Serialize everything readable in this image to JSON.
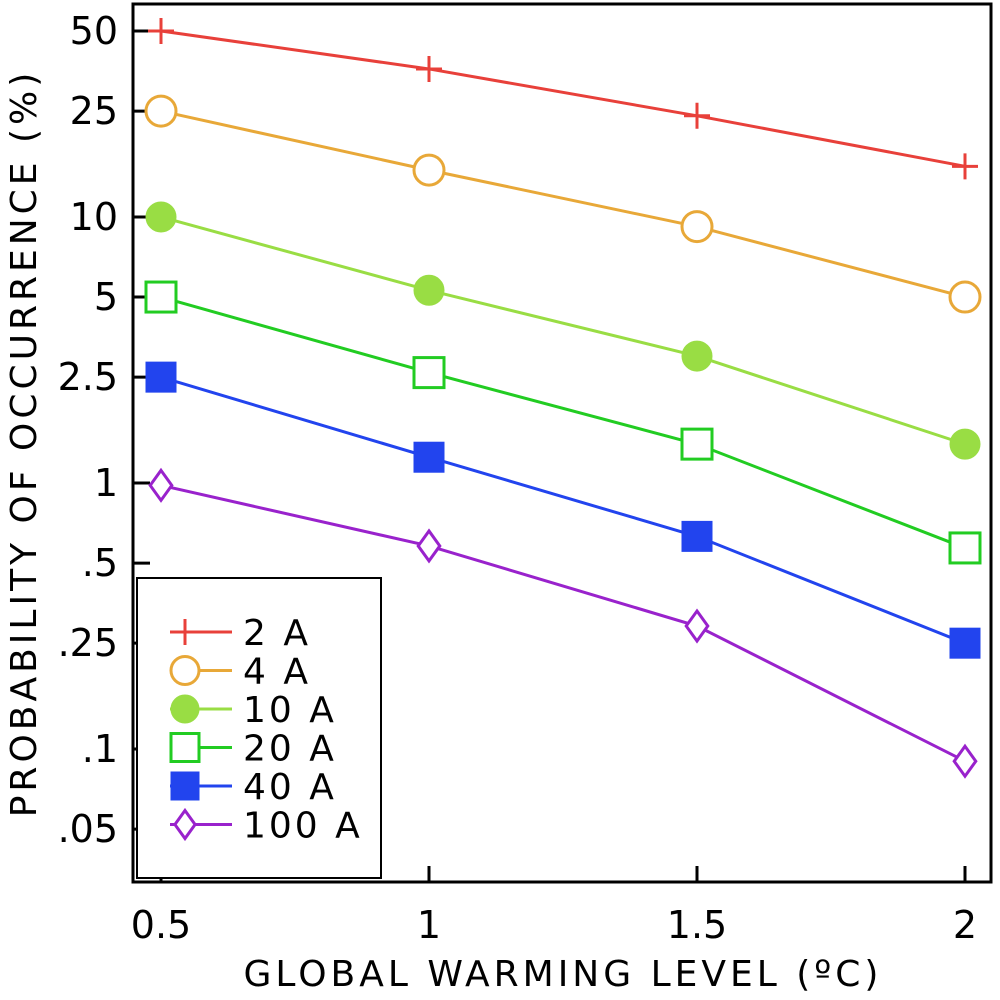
{
  "chart_data": {
    "type": "line",
    "xlabel": "GLOBAL WARMING LEVEL (ºC)",
    "ylabel": "PROBABILITY OF OCCURRENCE (%)",
    "x": [
      0.5,
      1,
      1.5,
      2
    ],
    "x_ticks": [
      "0.5",
      "1",
      "1.5",
      "2"
    ],
    "y_scale": "log",
    "y_ticks": [
      {
        "value": 50,
        "label": "50"
      },
      {
        "value": 25,
        "label": "25"
      },
      {
        "value": 10,
        "label": "10"
      },
      {
        "value": 5,
        "label": "5"
      },
      {
        "value": 2.5,
        "label": "2.5"
      },
      {
        "value": 1,
        "label": "1"
      },
      {
        "value": 0.5,
        "label": ".5"
      },
      {
        "value": 0.25,
        "label": ".25"
      },
      {
        "value": 0.1,
        "label": ".1"
      },
      {
        "value": 0.05,
        "label": ".05"
      }
    ],
    "grid": false,
    "legend_position": "bottom-left",
    "series": [
      {
        "name": "2 A",
        "color": "#e8403a",
        "marker": "plus",
        "values": [
          50,
          36,
          24,
          15.5
        ]
      },
      {
        "name": "4 A",
        "color": "#e8a838",
        "marker": "circle-open",
        "values": [
          25,
          15,
          9.2,
          5
        ]
      },
      {
        "name": "10 A",
        "color": "#99dd44",
        "marker": "circle-filled",
        "values": [
          10,
          5.3,
          3,
          1.4
        ]
      },
      {
        "name": "20 A",
        "color": "#22cc22",
        "marker": "square-open",
        "values": [
          5,
          2.6,
          1.4,
          0.57
        ]
      },
      {
        "name": "40 A",
        "color": "#2244ee",
        "marker": "square-filled",
        "values": [
          2.5,
          1.25,
          0.63,
          0.25
        ]
      },
      {
        "name": "100 A",
        "color": "#9922cc",
        "marker": "diamond-open",
        "values": [
          0.98,
          0.58,
          0.29,
          0.09
        ]
      }
    ]
  }
}
